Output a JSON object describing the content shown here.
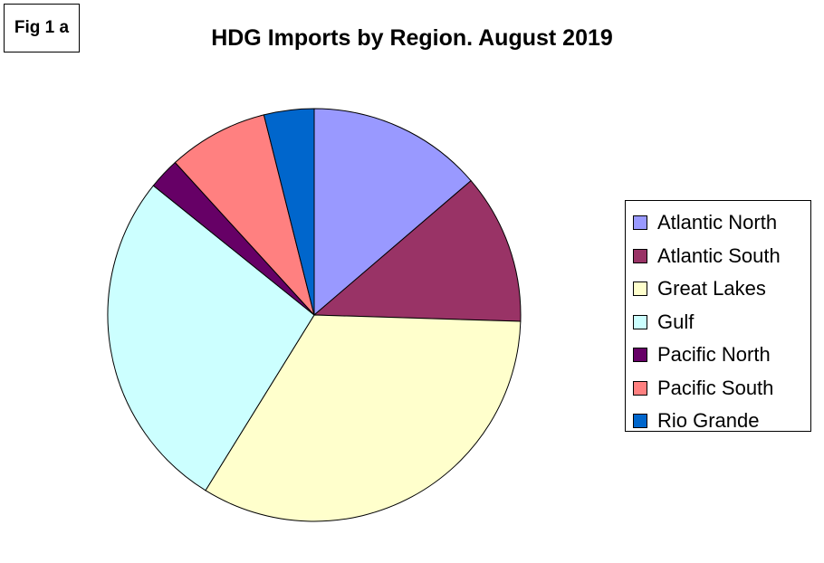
{
  "figure_label": "Fig 1 a",
  "chart_data": {
    "type": "pie",
    "title": "HDG Imports by Region. August 2019",
    "categories": [
      "Atlantic North",
      "Atlantic South",
      "Great Lakes",
      "Gulf",
      "Pacific North",
      "Pacific South",
      "Rio Grande"
    ],
    "values": [
      14.0,
      12.0,
      34.0,
      27.5,
      2.5,
      8.0,
      4.0
    ],
    "colors": [
      "#9999ff",
      "#993366",
      "#ffffcc",
      "#ccffff",
      "#660066",
      "#ff8080",
      "#0066cc"
    ],
    "legend_position": "right"
  }
}
